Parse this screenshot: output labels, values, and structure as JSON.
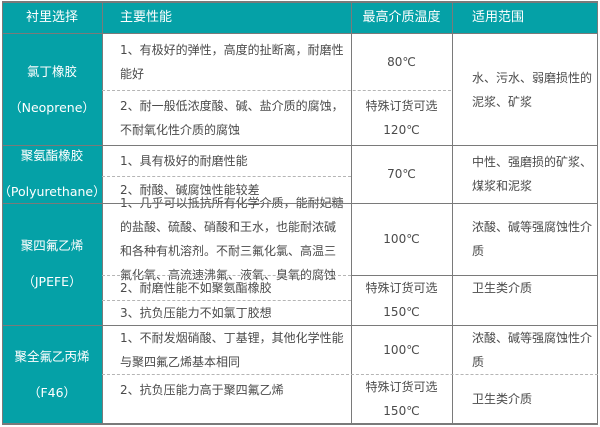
{
  "header": {
    "lining": "衬里选择",
    "properties": "主要性能",
    "max_temp": "最高介质温度",
    "application": "适用范围"
  },
  "rows": [
    {
      "lining": "氯丁橡胶\n（Neoprene）",
      "props": [
        "1、有极好的弹性，高度的扯断离，耐磨性\n能好",
        "2、耐一般低浓度酸、碱、盐介质的腐蚀，\n不耐氧化性介质的腐蚀"
      ],
      "temps": [
        "80℃",
        "特殊订货可选\n120℃"
      ],
      "apps": [
        "水、污水、弱磨损性的\n泥浆、矿浆"
      ]
    },
    {
      "lining": "聚氨酯橡胶\n（Polyurethane）",
      "props": [
        "1、具有极好的耐磨性能",
        "2、耐酸、碱腐蚀性能较差"
      ],
      "temps": [
        "70℃"
      ],
      "apps": [
        "中性、强磨损的矿浆、\n煤浆和泥浆"
      ]
    },
    {
      "lining": "聚四氟乙烯\n（JPEFE）",
      "props": [
        "1、几乎可以抵抗所有化学介质，能耐妃糖\n的盐酸、硫酸、硝酸和王水，也能耐浓碱\n和各种有机溶剂。不耐三氟化氯、高温三\n氟化氧、高流速沸氟、液氧、臭氧的腐蚀",
        "2、耐磨性能不如聚氨酯橡胶",
        "3、抗负压能力不如氯丁胶想"
      ],
      "temps": [
        "100℃",
        "特殊订货可选\n150℃"
      ],
      "apps": [
        "浓酸、碱等强腐蚀性介\n质",
        "卫生类介质"
      ]
    },
    {
      "lining": "聚全氟乙丙烯\n（F46）",
      "props": [
        "1、不耐发烟硝酸、丁基锂，其他化学性能\n与聚四氟乙烯基本相同",
        "2、抗负压能力高于聚四氟乙烯"
      ],
      "temps": [
        "100℃",
        "特殊订货可选\n150℃"
      ],
      "apps": [
        "浓酸、碱等强腐蚀性介\n质",
        "卫生类介质"
      ]
    }
  ],
  "colors": {
    "header_bg": "#05a1a7",
    "border": "#7a7a7a",
    "text": "#4a4a4a"
  }
}
